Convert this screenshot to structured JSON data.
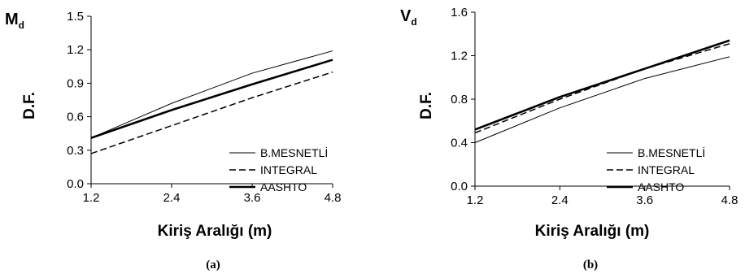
{
  "chart_data": [
    {
      "type": "line",
      "panel": "(a)",
      "corner_label": "M",
      "corner_subscript": "d",
      "xlabel": "Kiriş Aralığı (m)",
      "ylabel": "D.F.",
      "caption": "(a)",
      "x": [
        1.2,
        2.4,
        3.6,
        4.8
      ],
      "x_ticks": [
        "1.2",
        "2.4",
        "3.6",
        "4.8"
      ],
      "y_ticks": [
        "0.0",
        "0.3",
        "0.6",
        "0.9",
        "1.2",
        "1.5"
      ],
      "xlim": [
        1.2,
        4.8
      ],
      "ylim": [
        0,
        1.5
      ],
      "grid": false,
      "legend_position": "bottom-right",
      "series": [
        {
          "name": "B.MESNETLİ",
          "values": [
            0.41,
            0.72,
            0.99,
            1.19
          ],
          "style": "thin-solid"
        },
        {
          "name": "INTEGRAL",
          "values": [
            0.27,
            0.52,
            0.77,
            1.0
          ],
          "style": "dashed"
        },
        {
          "name": "AASHTO",
          "values": [
            0.41,
            0.66,
            0.89,
            1.11
          ],
          "style": "thick-solid"
        }
      ]
    },
    {
      "type": "line",
      "panel": "(b)",
      "corner_label": "V",
      "corner_subscript": "d",
      "xlabel": "Kiriş Aralığı (m)",
      "ylabel": "D.F.",
      "caption": "(b)",
      "x": [
        1.2,
        2.4,
        3.6,
        4.8
      ],
      "x_ticks": [
        "1.2",
        "2.4",
        "3.6",
        "4.8"
      ],
      "y_ticks": [
        "0.0",
        "0.4",
        "0.8",
        "1.2",
        "1.6"
      ],
      "xlim": [
        1.2,
        4.8
      ],
      "ylim": [
        0,
        1.6
      ],
      "grid": false,
      "legend_position": "bottom-right",
      "series": [
        {
          "name": "B.MESNETLİ",
          "values": [
            0.4,
            0.72,
            0.99,
            1.19
          ],
          "style": "thin-solid"
        },
        {
          "name": "INTEGRAL",
          "values": [
            0.49,
            0.8,
            1.08,
            1.31
          ],
          "style": "dashed"
        },
        {
          "name": "AASHTO",
          "values": [
            0.52,
            0.82,
            1.08,
            1.34
          ],
          "style": "thick-solid"
        }
      ]
    }
  ]
}
